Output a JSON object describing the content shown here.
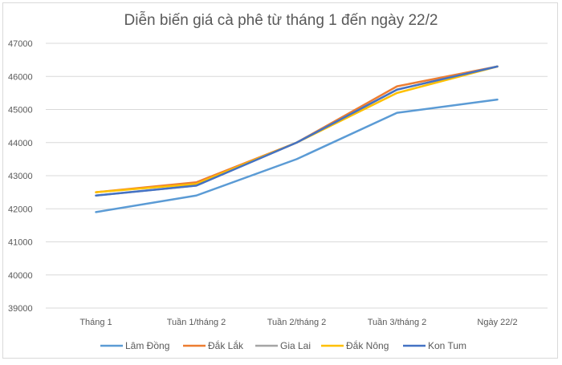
{
  "chart_data": {
    "type": "line",
    "title": "Diễn biến giá cà phê từ tháng 1 đến ngày 22/2",
    "xlabel": "",
    "ylabel": "",
    "categories": [
      "Tháng 1",
      "Tuần 1/tháng 2",
      "Tuần 2/tháng 2",
      "Tuần 3/tháng 2",
      "Ngày 22/2"
    ],
    "ylim": [
      39000,
      47000
    ],
    "yticks": [
      39000,
      40000,
      41000,
      42000,
      43000,
      44000,
      45000,
      46000,
      47000
    ],
    "grid": true,
    "legend": "bottom",
    "series": [
      {
        "name": "Lâm Đồng",
        "color": "#5b9bd5",
        "values": [
          41900,
          42400,
          43500,
          44900,
          45300
        ]
      },
      {
        "name": "Đắk Lắk",
        "color": "#ed7d31",
        "values": [
          42500,
          42800,
          44000,
          45700,
          46300
        ]
      },
      {
        "name": "Gia Lai",
        "color": "#a5a5a5",
        "values": [
          42400,
          42700,
          44000,
          45600,
          46300
        ]
      },
      {
        "name": "Đắk Nông",
        "color": "#ffc000",
        "values": [
          42500,
          42750,
          44000,
          45500,
          46300
        ]
      },
      {
        "name": "Kon Tum",
        "color": "#4472c4",
        "values": [
          42400,
          42700,
          44000,
          45600,
          46300
        ]
      }
    ]
  }
}
